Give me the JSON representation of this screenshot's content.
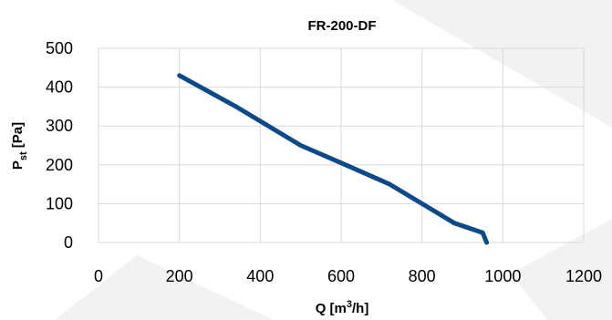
{
  "chart_data": {
    "type": "line",
    "title": "FR-200-DF",
    "xlabel": {
      "main": "Q [m",
      "sup": "3",
      "rest": "/h]"
    },
    "ylabel": {
      "main": "P",
      "sub": "st",
      "rest": " [Pa]"
    },
    "xlim": [
      0,
      1200
    ],
    "ylim": [
      0,
      500
    ],
    "x_ticks": [
      0,
      200,
      400,
      600,
      800,
      1000,
      1200
    ],
    "y_ticks": [
      0,
      100,
      200,
      300,
      400,
      500
    ],
    "grid": true,
    "legend": "none",
    "line_color": "#0a4a8a",
    "series": [
      {
        "x": [
          200,
          340,
          500,
          600,
          720,
          800,
          880,
          950,
          960
        ],
        "y": [
          430,
          350,
          250,
          205,
          150,
          100,
          50,
          25,
          0
        ]
      }
    ]
  },
  "background": {
    "watermark_color": "#f2f2f2"
  }
}
